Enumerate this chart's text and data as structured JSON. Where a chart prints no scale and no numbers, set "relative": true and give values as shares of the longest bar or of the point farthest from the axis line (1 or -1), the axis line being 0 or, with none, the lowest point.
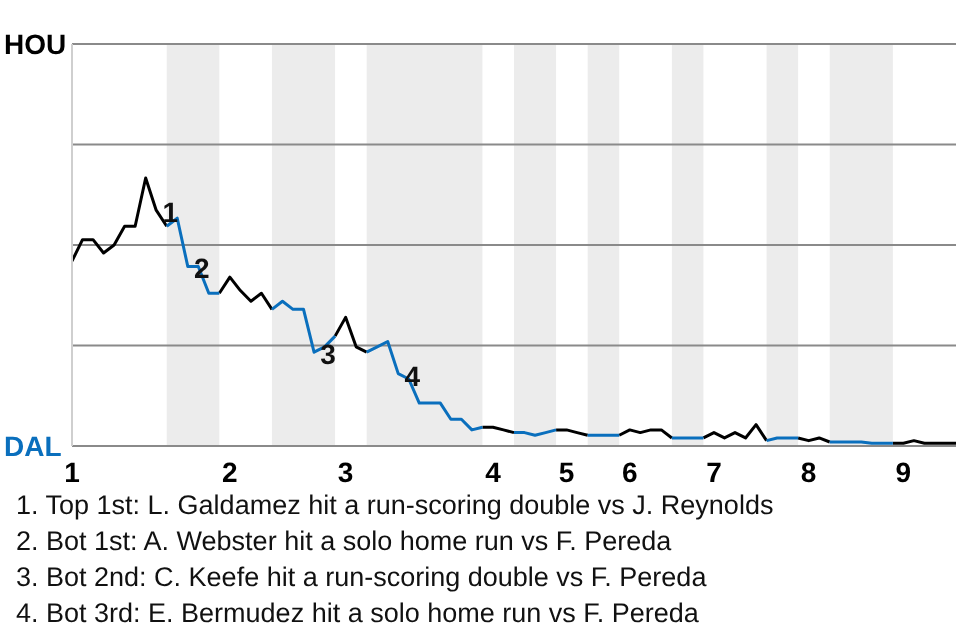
{
  "chart_data": {
    "type": "line",
    "relative": true,
    "categories": [
      "1",
      null,
      null,
      null,
      null,
      null,
      null,
      null,
      null,
      null,
      null,
      null,
      null,
      null,
      null,
      "2",
      null,
      null,
      null,
      null,
      null,
      null,
      null,
      null,
      null,
      null,
      "3",
      null,
      null,
      null,
      null,
      null,
      null,
      null,
      null,
      null,
      null,
      null,
      null,
      null,
      "4",
      null,
      null,
      null,
      null,
      null,
      null,
      "5",
      null,
      null,
      null,
      null,
      null,
      "6",
      null,
      null,
      null,
      null,
      null,
      null,
      null,
      "7",
      null,
      null,
      null,
      null,
      null,
      null,
      null,
      null,
      "8",
      null,
      null,
      null,
      null,
      null,
      null,
      null,
      null,
      "9",
      null,
      null,
      null,
      null,
      null
    ],
    "legend": false,
    "marker": "none",
    "series": [
      {
        "name": "HOU",
        "color": "#000000",
        "values": [
          0.69,
          0.77,
          0.77,
          0.72,
          0.75,
          0.82,
          0.82,
          1,
          0.88,
          0.82,
          null,
          null,
          null,
          null,
          0.57,
          0.63,
          0.58,
          0.54,
          0.57,
          0.51,
          null,
          null,
          null,
          null,
          null,
          0.41,
          0.48,
          0.37,
          0.35,
          null,
          null,
          null,
          null,
          null,
          null,
          null,
          null,
          null,
          null,
          0.07,
          0.07,
          0.06,
          0.05,
          null,
          null,
          null,
          0.06,
          0.06,
          0.05,
          0.04,
          null,
          null,
          0.04,
          0.06,
          0.05,
          0.06,
          0.06,
          0.03,
          null,
          null,
          0.03,
          0.05,
          0.03,
          0.05,
          0.03,
          0.08,
          0.02,
          null,
          null,
          0.03,
          0.02,
          0.03,
          0.015,
          null,
          null,
          null,
          null,
          null,
          0.01,
          0.01,
          0.02,
          0.01,
          0.01,
          0.01,
          0.01
        ]
      },
      {
        "name": "DAL",
        "color": "#0a6fbd",
        "values": [
          null,
          null,
          null,
          null,
          null,
          null,
          null,
          null,
          null,
          0.82,
          0.85,
          0.67,
          0.67,
          0.57,
          0.57,
          null,
          null,
          null,
          null,
          0.51,
          0.54,
          0.51,
          0.51,
          0.35,
          0.37,
          0.41,
          null,
          null,
          0.35,
          0.37,
          0.39,
          0.27,
          0.25,
          0.16,
          0.16,
          0.16,
          0.1,
          0.1,
          0.06,
          0.07,
          null,
          null,
          0.05,
          0.05,
          0.04,
          0.05,
          0.06,
          null,
          null,
          0.04,
          0.04,
          0.04,
          0.04,
          null,
          null,
          null,
          null,
          0.03,
          0.03,
          0.03,
          0.03,
          null,
          null,
          null,
          null,
          null,
          0.02,
          0.03,
          0.03,
          0.03,
          null,
          null,
          0.015,
          0.015,
          0.015,
          0.015,
          0.01,
          0.01,
          0.01,
          null,
          null,
          null,
          null,
          null,
          null
        ]
      }
    ],
    "ref_lines": [
      {
        "axis": "y",
        "value": 0.375,
        "color": "#8a8a8a"
      },
      {
        "axis": "y",
        "value": 0.75,
        "color": "#8a8a8a"
      },
      {
        "axis": "y",
        "value": 1.125,
        "color": "#8a8a8a"
      },
      {
        "axis": "y",
        "value": 1.5,
        "color": "#8a8a8a"
      }
    ],
    "annotations": [
      {
        "text": "1",
        "y": 0.88
      },
      {
        "text": "2",
        "y": 0.67
      },
      {
        "text": "3",
        "y": 0.35
      },
      {
        "text": "4",
        "y": 0.27
      },
      "1. Top 1st: L. Galdamez hit a run-scoring double vs J. Reynolds",
      "2. Bot 1st: A. Webster hit a solo home run vs F. Pereda",
      "3. Bot 2nd: C. Keefe hit a run-scoring double vs F. Pereda",
      "4. Bot 3rd: E. Bermudez hit a solo home run vs F. Pereda"
    ]
  }
}
